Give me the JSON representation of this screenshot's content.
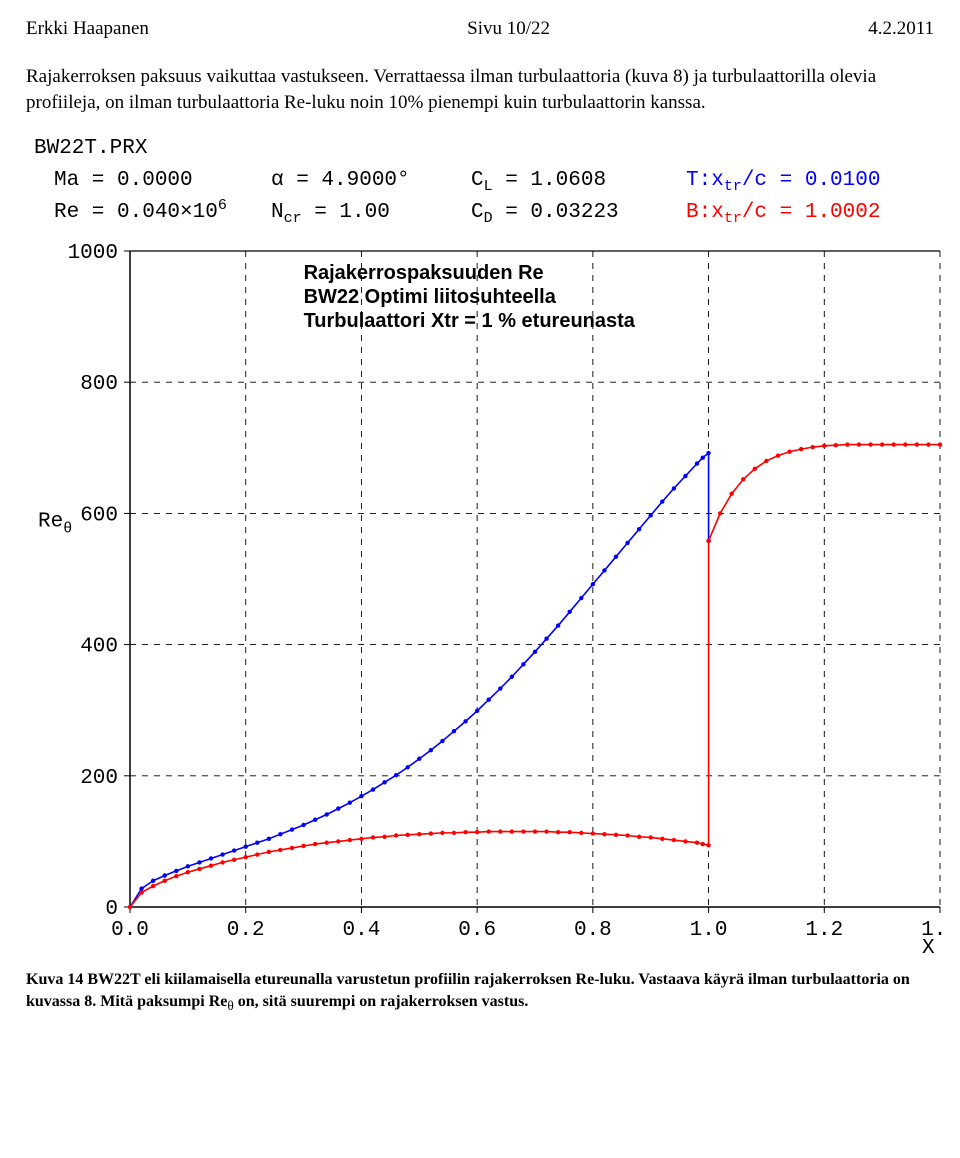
{
  "header": {
    "left": "Erkki Haapanen",
    "center": "Sivu 10/22",
    "right": "4.2.2011"
  },
  "paragraph": "Rajakerroksen paksuus vaikuttaa vastukseen. Verrattaessa ilman turbulaattoria (kuva 8) ja turbulaattorilla olevia profiileja, on ilman turbulaattoria Re-luku noin 10% pienempi kuin turbulaattorin kanssa.",
  "caption": {
    "bold": "Kuva  14 BW22T eli kiilamaisella etureunalla varustetun profiilin rajakerroksen Re-luku. Vastaava käyrä ilman turbulaattoria on kuvassa 8. Mitä paksumpi Re",
    "sub": "θ",
    "tail": " on, sitä suurempi on rajakerroksen vastus."
  },
  "chart": {
    "filename": "BW22T.PRX",
    "params": {
      "Ma": "Ma = 0.0000",
      "alpha": "α  = 4.9000°",
      "CL": "C_L = 1.0608",
      "Txtr": "T:x_tr/c = 0.0100",
      "Re": "Re = 0.040×10^6",
      "Ncr": "N_cr = 1.00",
      "CD": "C_D = 0.03223",
      "Bxtr": "B:x_tr/c = 1.0002"
    },
    "param_colors": {
      "Txtr": "#0000ff",
      "Bxtr": "#ff0000",
      "default": "#000000"
    },
    "annotation": [
      "Rajakerrospaksuuden Re",
      "BW22 Optimi liitosuhteella",
      "Turbulaattori Xtr = 1 % etureunasta"
    ],
    "ylabel": "Re_θ",
    "xlabel": "X",
    "xlim": [
      0,
      1.4
    ],
    "xtick_step": 0.2,
    "ylim": [
      0,
      1000
    ],
    "ytick_step": 200,
    "colors": {
      "grid": "#000000",
      "axes": "#000000",
      "blue": "#0000ff",
      "red": "#ff0000",
      "bg": "#ffffff"
    },
    "line_width": 1.6,
    "marker_size": 2.2,
    "series_blue": [
      [
        0.0,
        0
      ],
      [
        0.02,
        28
      ],
      [
        0.04,
        40
      ],
      [
        0.06,
        48
      ],
      [
        0.08,
        55
      ],
      [
        0.1,
        62
      ],
      [
        0.12,
        68
      ],
      [
        0.14,
        74
      ],
      [
        0.16,
        80
      ],
      [
        0.18,
        86
      ],
      [
        0.2,
        92
      ],
      [
        0.22,
        98
      ],
      [
        0.24,
        104
      ],
      [
        0.26,
        111
      ],
      [
        0.28,
        118
      ],
      [
        0.3,
        125
      ],
      [
        0.32,
        133
      ],
      [
        0.34,
        141
      ],
      [
        0.36,
        150
      ],
      [
        0.38,
        159
      ],
      [
        0.4,
        169
      ],
      [
        0.42,
        179
      ],
      [
        0.44,
        190
      ],
      [
        0.46,
        201
      ],
      [
        0.48,
        213
      ],
      [
        0.5,
        226
      ],
      [
        0.52,
        239
      ],
      [
        0.54,
        253
      ],
      [
        0.56,
        268
      ],
      [
        0.58,
        283
      ],
      [
        0.6,
        299
      ],
      [
        0.62,
        316
      ],
      [
        0.64,
        333
      ],
      [
        0.66,
        351
      ],
      [
        0.68,
        370
      ],
      [
        0.7,
        389
      ],
      [
        0.72,
        409
      ],
      [
        0.74,
        429
      ],
      [
        0.76,
        450
      ],
      [
        0.78,
        471
      ],
      [
        0.8,
        492
      ],
      [
        0.82,
        513
      ],
      [
        0.84,
        534
      ],
      [
        0.86,
        555
      ],
      [
        0.88,
        576
      ],
      [
        0.9,
        597
      ],
      [
        0.92,
        618
      ],
      [
        0.94,
        638
      ],
      [
        0.96,
        657
      ],
      [
        0.98,
        676
      ],
      [
        0.99,
        685
      ],
      [
        1.0,
        692
      ],
      [
        1.0,
        558
      ]
    ],
    "series_red": [
      [
        0.0,
        0
      ],
      [
        0.02,
        22
      ],
      [
        0.04,
        32
      ],
      [
        0.06,
        40
      ],
      [
        0.08,
        47
      ],
      [
        0.1,
        53
      ],
      [
        0.12,
        58
      ],
      [
        0.14,
        63
      ],
      [
        0.16,
        68
      ],
      [
        0.18,
        72
      ],
      [
        0.2,
        76
      ],
      [
        0.22,
        80
      ],
      [
        0.24,
        84
      ],
      [
        0.26,
        87
      ],
      [
        0.28,
        90
      ],
      [
        0.3,
        93
      ],
      [
        0.32,
        96
      ],
      [
        0.34,
        98
      ],
      [
        0.36,
        100
      ],
      [
        0.38,
        102
      ],
      [
        0.4,
        104
      ],
      [
        0.42,
        106
      ],
      [
        0.44,
        107
      ],
      [
        0.46,
        109
      ],
      [
        0.48,
        110
      ],
      [
        0.5,
        111
      ],
      [
        0.52,
        112
      ],
      [
        0.54,
        113
      ],
      [
        0.56,
        113
      ],
      [
        0.58,
        114
      ],
      [
        0.6,
        114
      ],
      [
        0.62,
        115
      ],
      [
        0.64,
        115
      ],
      [
        0.66,
        115
      ],
      [
        0.68,
        115
      ],
      [
        0.7,
        115
      ],
      [
        0.72,
        115
      ],
      [
        0.74,
        114
      ],
      [
        0.76,
        114
      ],
      [
        0.78,
        113
      ],
      [
        0.8,
        112
      ],
      [
        0.82,
        111
      ],
      [
        0.84,
        110
      ],
      [
        0.86,
        109
      ],
      [
        0.88,
        107
      ],
      [
        0.9,
        106
      ],
      [
        0.92,
        104
      ],
      [
        0.94,
        102
      ],
      [
        0.96,
        100
      ],
      [
        0.98,
        98
      ],
      [
        0.99,
        96
      ],
      [
        1.0,
        94
      ],
      [
        1.0,
        558
      ],
      [
        1.0,
        558
      ],
      [
        1.02,
        600
      ],
      [
        1.04,
        630
      ],
      [
        1.06,
        652
      ],
      [
        1.08,
        668
      ],
      [
        1.1,
        680
      ],
      [
        1.12,
        688
      ],
      [
        1.14,
        694
      ],
      [
        1.16,
        698
      ],
      [
        1.18,
        701
      ],
      [
        1.2,
        703
      ],
      [
        1.22,
        704
      ],
      [
        1.24,
        705
      ],
      [
        1.26,
        705
      ],
      [
        1.28,
        705
      ],
      [
        1.3,
        705
      ],
      [
        1.32,
        705
      ],
      [
        1.34,
        705
      ],
      [
        1.36,
        705
      ],
      [
        1.38,
        705
      ],
      [
        1.4,
        705
      ]
    ]
  }
}
